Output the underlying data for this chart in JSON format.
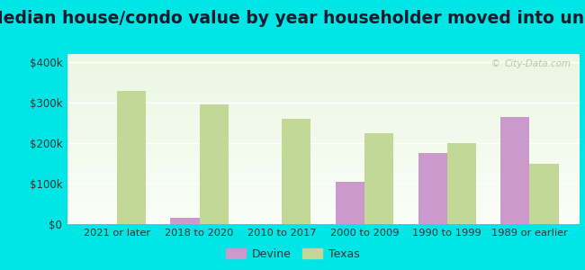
{
  "categories": [
    "2021 or later",
    "2018 to 2020",
    "2010 to 2017",
    "2000 to 2009",
    "1990 to 1999",
    "1989 or earlier"
  ],
  "devine_values": [
    0,
    15000,
    0,
    105000,
    175000,
    265000
  ],
  "texas_values": [
    330000,
    295000,
    260000,
    225000,
    200000,
    150000
  ],
  "devine_color": "#cc99cc",
  "texas_color": "#c2d896",
  "title": "Median house/condo value by year householder moved into unit",
  "ylim": [
    0,
    420000
  ],
  "yticks": [
    0,
    100000,
    200000,
    300000,
    400000
  ],
  "ytick_labels": [
    "$0",
    "$100k",
    "$200k",
    "$300k",
    "$400k"
  ],
  "plot_bg_top": "#e8f5e0",
  "plot_bg_bottom": "#f0fce8",
  "outer_background": "#00e5e5",
  "bar_width": 0.35,
  "legend_labels": [
    "Devine",
    "Texas"
  ],
  "watermark": "City-Data.com",
  "title_fontsize": 13.5,
  "title_color": "#1a1a2e"
}
